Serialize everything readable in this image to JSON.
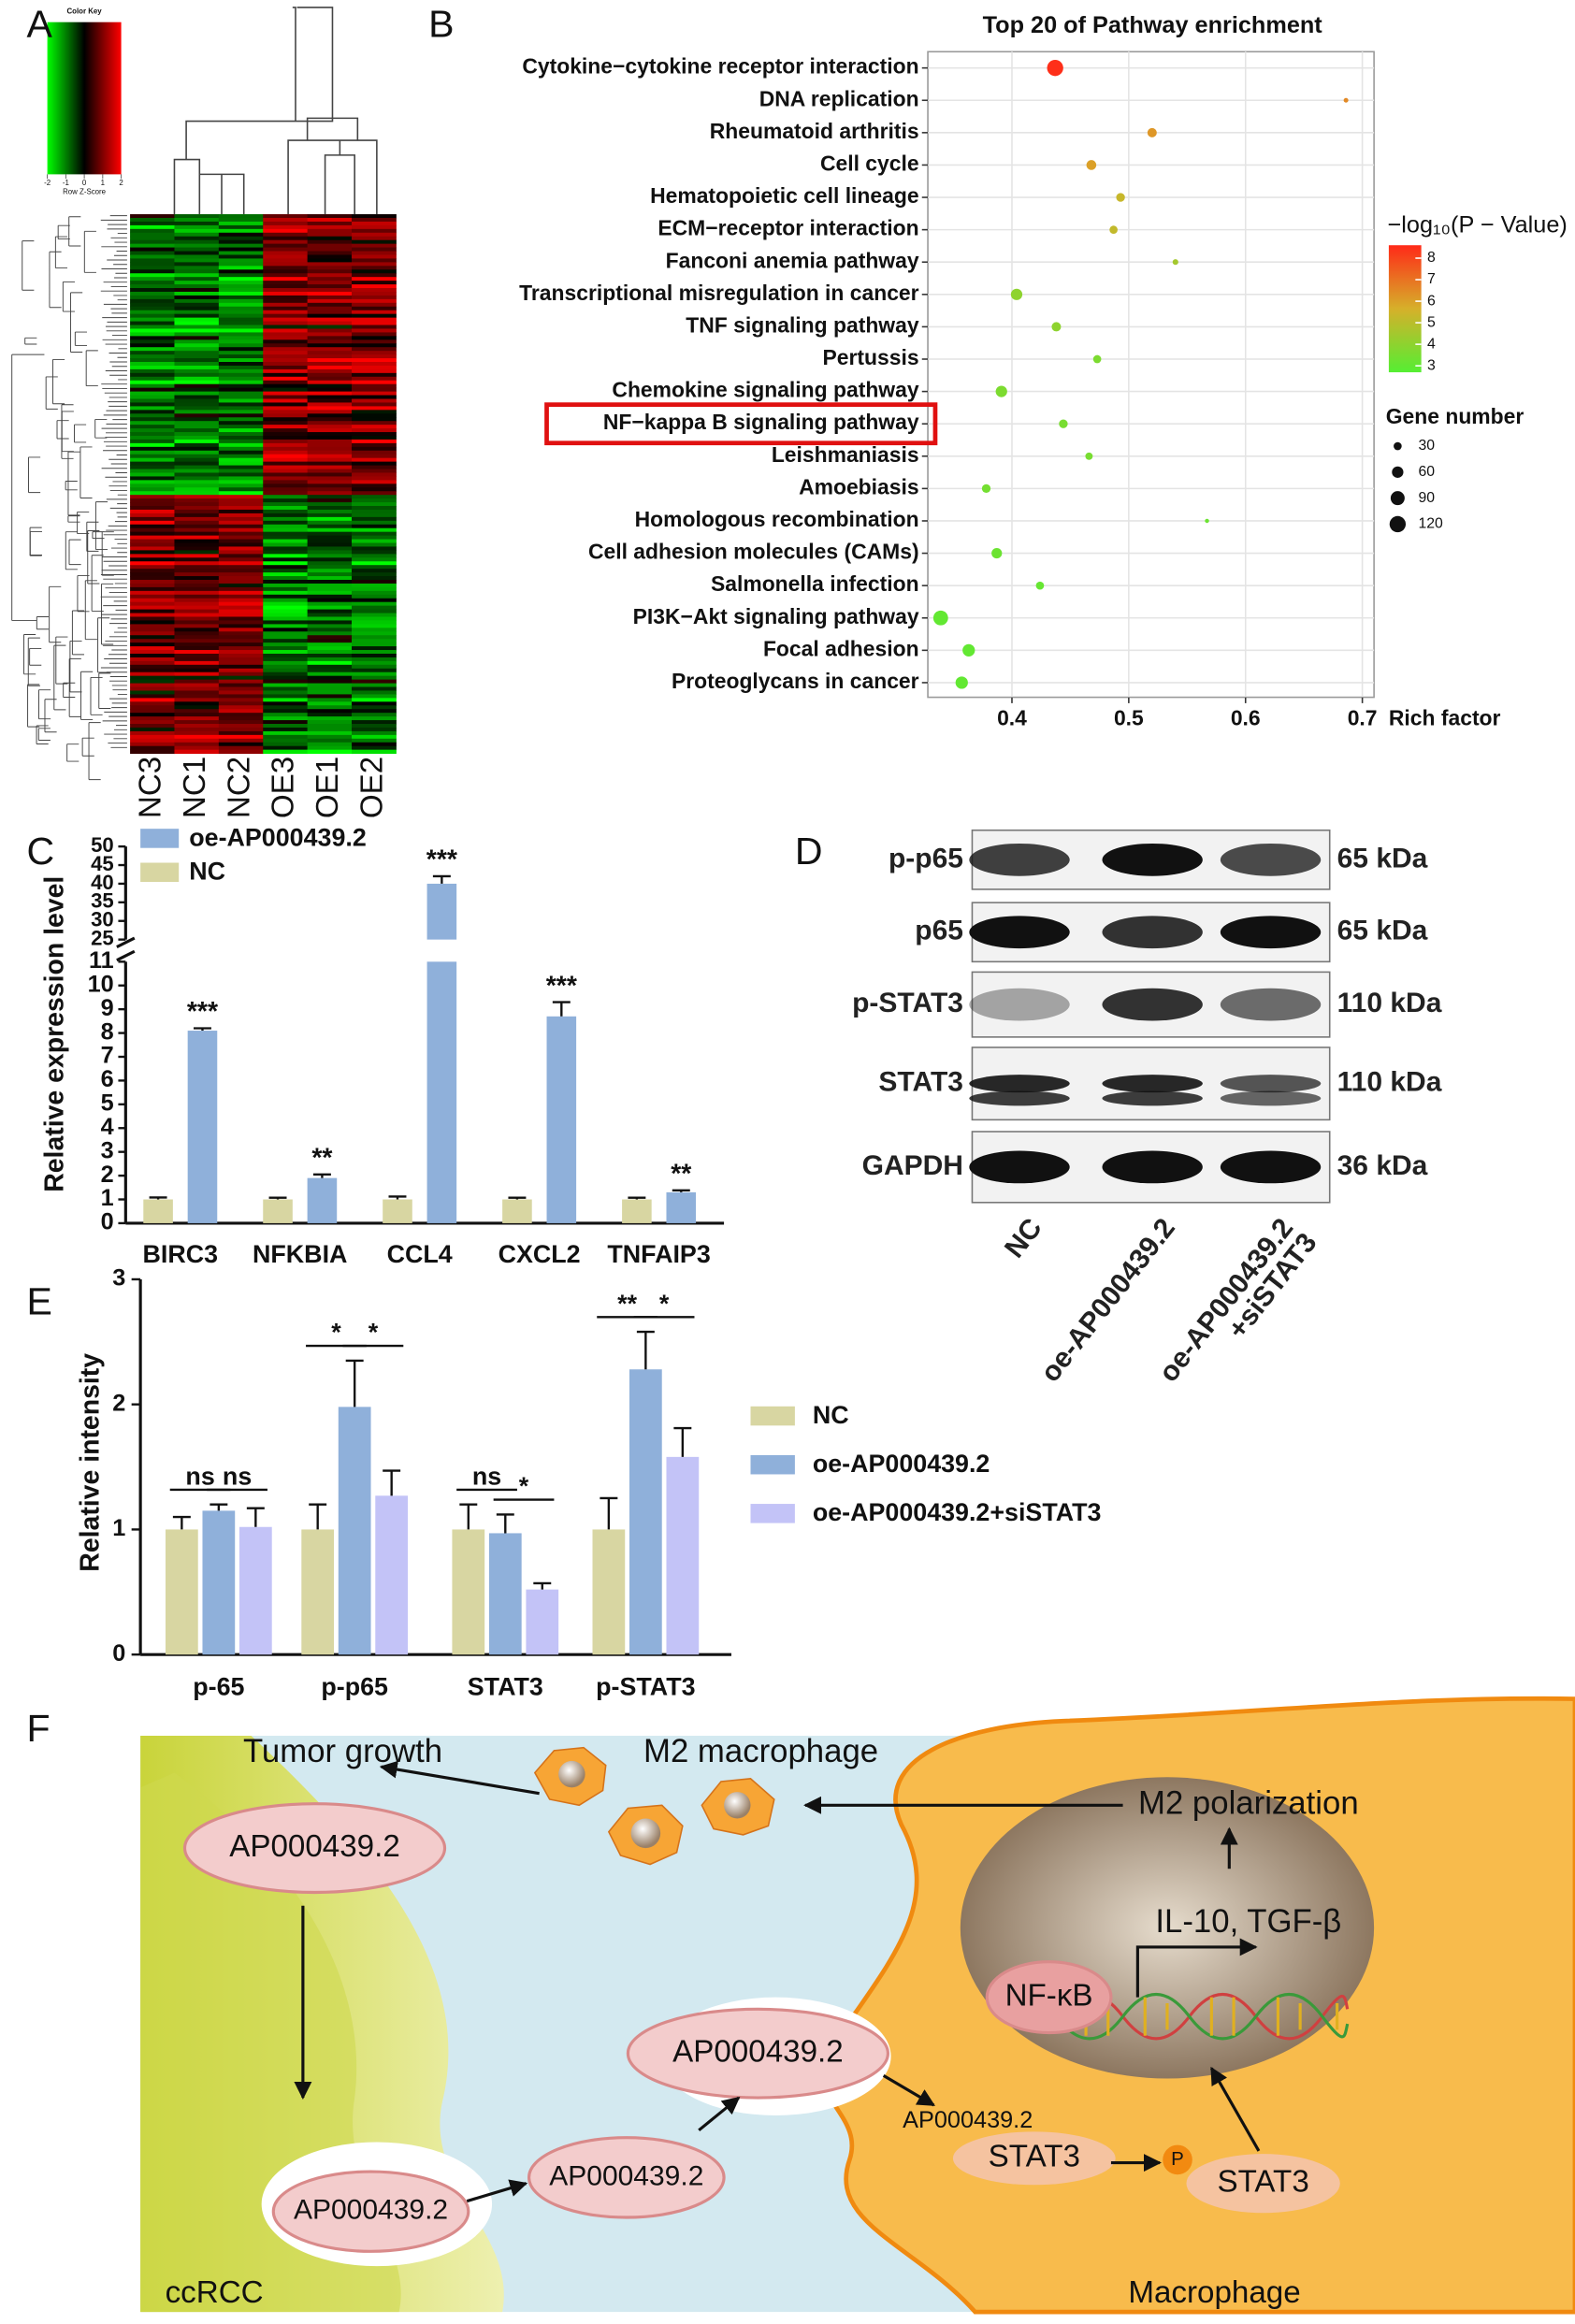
{
  "panel_labels": [
    "A",
    "B",
    "C",
    "D",
    "E",
    "F"
  ],
  "heatmap": {
    "title": "Color Key",
    "key_label": "Row Z-Score",
    "key_ticks": [
      -2,
      -1,
      0,
      1,
      2
    ],
    "columns": [
      "NC3",
      "NC1",
      "NC2",
      "OE3",
      "OE1",
      "OE2"
    ]
  },
  "chart_data": [
    {
      "type": "scatter",
      "title": "Top 20 of Pathway enrichment",
      "xlabel": "Rich factor",
      "categories": [
        "Cytokine−cytokine receptor interaction",
        "DNA replication",
        "Rheumatoid arthritis",
        "Cell cycle",
        "Hematopoietic cell lineage",
        "ECM−receptor interaction",
        "Fanconi anemia pathway",
        "Transcriptional misregulation in cancer",
        "TNF signaling pathway",
        "Pertussis",
        "Chemokine signaling pathway",
        "NF−kappa B signaling pathway",
        "Leishmaniasis",
        "Amoebiasis",
        "Homologous recombination",
        "Cell adhesion molecules (CAMs)",
        "Salmonella infection",
        "PI3K−Akt signaling pathway",
        "Focal adhesion",
        "Proteoglycans in cancer"
      ],
      "values": [
        0.437,
        0.686,
        0.52,
        0.468,
        0.493,
        0.487,
        0.54,
        0.404,
        0.438,
        0.473,
        0.391,
        0.444,
        0.466,
        0.378,
        0.567,
        0.387,
        0.424,
        0.339,
        0.363,
        0.357
      ],
      "log_p": [
        8.5,
        6.5,
        6.2,
        6,
        5.3,
        5.2,
        4.5,
        4,
        4,
        3.6,
        3.6,
        3.5,
        3.5,
        3.4,
        3.2,
        3.2,
        3.1,
        3,
        3,
        3
      ],
      "gene_numbers": [
        120,
        10,
        40,
        45,
        35,
        30,
        15,
        60,
        40,
        30,
        60,
        35,
        25,
        35,
        8,
        50,
        30,
        100,
        70,
        70
      ],
      "xlim": [
        0.328,
        0.71
      ],
      "xticks": [
        0.4,
        0.5,
        0.6,
        0.7
      ],
      "grid": true,
      "colorbar_title": "−log₁₀(P − Value)",
      "clim": [
        2.7,
        8.6
      ],
      "cticks": [
        3,
        4,
        5,
        6,
        7,
        8
      ],
      "colorscale": [
        "#55ee33",
        "#d6b02a",
        "#ff2a18"
      ],
      "size_title": "Gene number",
      "size_ticks": [
        30,
        60,
        90,
        120
      ],
      "highlight_index": 11
    },
    {
      "type": "bar",
      "ylabel": "Relative expression level",
      "categories": [
        "BIRC3",
        "NFKBIA",
        "CCL4",
        "CXCL2",
        "TNFAIP3"
      ],
      "series": [
        {
          "name": "oe-AP000439.2",
          "color": "#8fb0da",
          "values": [
            8.1,
            1.9,
            40,
            8.7,
            1.3
          ],
          "errors": [
            0.1,
            0.15,
            2,
            0.6,
            0.08
          ]
        },
        {
          "name": "NC",
          "color": "#d8d6a2",
          "values": [
            1,
            1,
            1,
            1,
            1
          ],
          "errors": [
            0.08,
            0.07,
            0.12,
            0.07,
            0.07
          ]
        }
      ],
      "significance": [
        "***",
        "**",
        "***",
        "***",
        "**"
      ],
      "ylim": [
        0,
        50
      ],
      "ybreak": [
        11,
        25
      ],
      "yticks": [
        0,
        1,
        2,
        3,
        4,
        5,
        6,
        7,
        8,
        9,
        10,
        11,
        25,
        30,
        35,
        40,
        45,
        50
      ]
    },
    {
      "type": "bar",
      "ylabel": "Relative intensity",
      "categories": [
        "p-65",
        "p-p65",
        "STAT3",
        "p-STAT3"
      ],
      "series": [
        {
          "name": "NC",
          "color": "#d8d6a2",
          "values": [
            1,
            1,
            1,
            1
          ],
          "errors": [
            0.1,
            0.2,
            0.2,
            0.25
          ]
        },
        {
          "name": "oe-AP000439.2",
          "color": "#8fb0da",
          "values": [
            1.15,
            1.98,
            0.97,
            2.28
          ],
          "errors": [
            0.05,
            0.37,
            0.15,
            0.3
          ]
        },
        {
          "name": "oe-AP000439.2+siSTAT3",
          "color": "#c3c3f7",
          "values": [
            1.02,
            1.27,
            0.52,
            1.58
          ],
          "errors": [
            0.15,
            0.2,
            0.05,
            0.23
          ]
        }
      ],
      "significance": [
        [
          "ns",
          "ns"
        ],
        [
          "*",
          "*"
        ],
        [
          "ns",
          "*"
        ],
        [
          "**",
          "*"
        ]
      ],
      "ylim": [
        0,
        3
      ],
      "yticks": [
        0,
        1,
        2,
        3
      ]
    }
  ],
  "western_blot": {
    "rows": [
      {
        "label": "p-p65",
        "size": "65 kDa"
      },
      {
        "label": "p65",
        "size": "65 kDa"
      },
      {
        "label": "p-STAT3",
        "size": "110 kDa"
      },
      {
        "label": "STAT3",
        "size": "110 kDa"
      },
      {
        "label": "GAPDH",
        "size": "36 kDa"
      }
    ],
    "columns": [
      [
        "NC"
      ],
      [
        "oe-AP000439.2"
      ],
      [
        "oe-AP000439.2",
        "+siSTAT3"
      ]
    ]
  },
  "diagram": {
    "tumor_growth": "Tumor growth",
    "m2_macrophage": "M2 macrophage",
    "m2_polarization": "M2 polarization",
    "cytokines": "IL-10, TGF-β",
    "nfkb": "NF-κB",
    "lnc_tumor_1": "AP000439.2",
    "lnc_tumor_2": "AP000439.2",
    "lnc_exo": "AP000439.2",
    "lnc_entering": "AP000439.2",
    "lnc_cell": "AP000439.2",
    "stat3": "STAT3",
    "phospho": "P",
    "pstat3": "STAT3",
    "ccrcc": "ccRCC",
    "macrophage": "Macrophage"
  }
}
